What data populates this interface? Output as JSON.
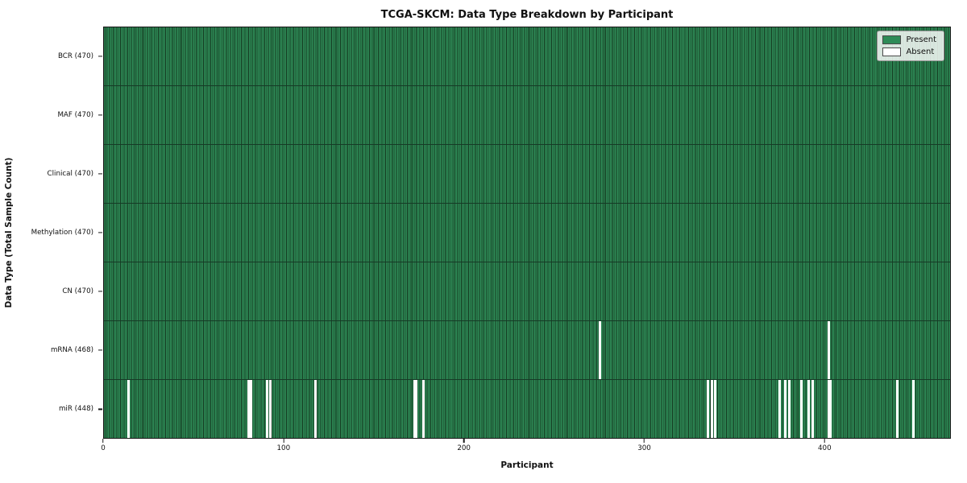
{
  "chart_data": {
    "type": "heatmap",
    "title": "TCGA-SKCM: Data Type Breakdown by Participant",
    "xlabel": "Participant",
    "ylabel": "Data Type (Total Sample Count)",
    "x_range": [
      0,
      470
    ],
    "n_participants": 470,
    "x_ticks": [
      0,
      100,
      200,
      300,
      400
    ],
    "grid": false,
    "legend_position": "upper right",
    "legend": [
      {
        "label": "Present",
        "color": "#2e8b57"
      },
      {
        "label": "Absent",
        "color": "#ffffff"
      }
    ],
    "colors": {
      "present": "#2e8b57",
      "bar_edge": "#14381f",
      "absent": "#ffffff",
      "row_separator": "#163a26"
    },
    "rows": [
      {
        "label": "BCR (470)",
        "data_type": "BCR",
        "total": 470,
        "absent_participants": []
      },
      {
        "label": "MAF (470)",
        "data_type": "MAF",
        "total": 470,
        "absent_participants": []
      },
      {
        "label": "Clinical (470)",
        "data_type": "Clinical",
        "total": 470,
        "absent_participants": []
      },
      {
        "label": "Methylation (470)",
        "data_type": "Methylation",
        "total": 470,
        "absent_participants": []
      },
      {
        "label": "CN (470)",
        "data_type": "CN",
        "total": 470,
        "absent_participants": []
      },
      {
        "label": "mRNA (468)",
        "data_type": "mRNA",
        "total": 468,
        "absent_participants": [
          275,
          402
        ]
      },
      {
        "label": "miR (448)",
        "data_type": "miR",
        "total": 448,
        "absent_participants": [
          13,
          80,
          81,
          90,
          92,
          117,
          172,
          173,
          177,
          335,
          337,
          339,
          375,
          378,
          380,
          387,
          391,
          393,
          402,
          403,
          440,
          449
        ]
      }
    ]
  }
}
